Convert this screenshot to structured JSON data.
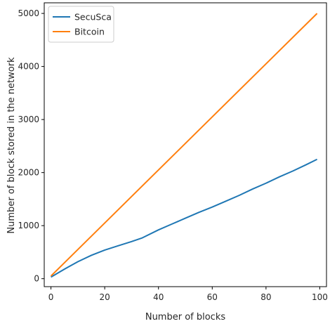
{
  "chart_data": {
    "type": "line",
    "title": "",
    "xlabel": "Number of blocks",
    "ylabel": "Number of block stored in the network",
    "xlim": [
      -2.5,
      102.5
    ],
    "ylim": [
      -150,
      5200
    ],
    "xticks": [
      0,
      20,
      40,
      60,
      80,
      100
    ],
    "yticks": [
      0,
      1000,
      2000,
      3000,
      4000,
      5000
    ],
    "grid": false,
    "legend_position": "upper-left",
    "series": [
      {
        "name": "SecuSca",
        "color": "#1f77b4",
        "x": [
          0,
          5,
          10,
          15,
          20,
          25,
          30,
          34,
          40,
          45,
          50,
          55,
          60,
          65,
          70,
          75,
          80,
          85,
          90,
          95,
          99
        ],
        "y": [
          30,
          180,
          320,
          440,
          540,
          620,
          700,
          770,
          920,
          1030,
          1140,
          1250,
          1350,
          1460,
          1570,
          1690,
          1800,
          1920,
          2030,
          2150,
          2250
        ]
      },
      {
        "name": "Bitcoin",
        "color": "#ff7f0e",
        "x": [
          0,
          99
        ],
        "y": [
          50,
          5000
        ]
      }
    ]
  }
}
